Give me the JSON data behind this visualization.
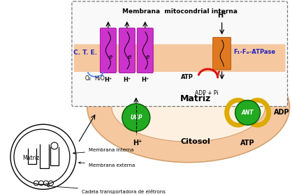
{
  "bg_color": "#ffffff",
  "membrane_color": "#f5c8a0",
  "membrane_dark": "#e8a870",
  "purple_color": "#cc33cc",
  "green_color": "#22aa22",
  "orange_color": "#e07820",
  "red_color": "#dd1111",
  "yellow_color": "#ddaa00",
  "blue_text_color": "#2222bb",
  "labels": {
    "membrane_title": "Membrana  mitocondrial interna",
    "cte": "C. T. E.",
    "o2": "O₂",
    "h2o": "H₂O",
    "h_plus": "H⁺",
    "atp": "ATP",
    "adp_pi": "ADP + Pi",
    "f1fo": "F₁-Fₒ-ATPase",
    "matriz": "Matriz",
    "citosol": "Citosol",
    "ucp": "UCP",
    "ant": "ANT",
    "adp": "ADP",
    "atp2": "ATP",
    "matriz2": "Matriz",
    "membrana_interna": "Membrana interna",
    "membrana_externa": "Membrana externa",
    "cadeia": "Cadeia transportadora de elétrons"
  }
}
